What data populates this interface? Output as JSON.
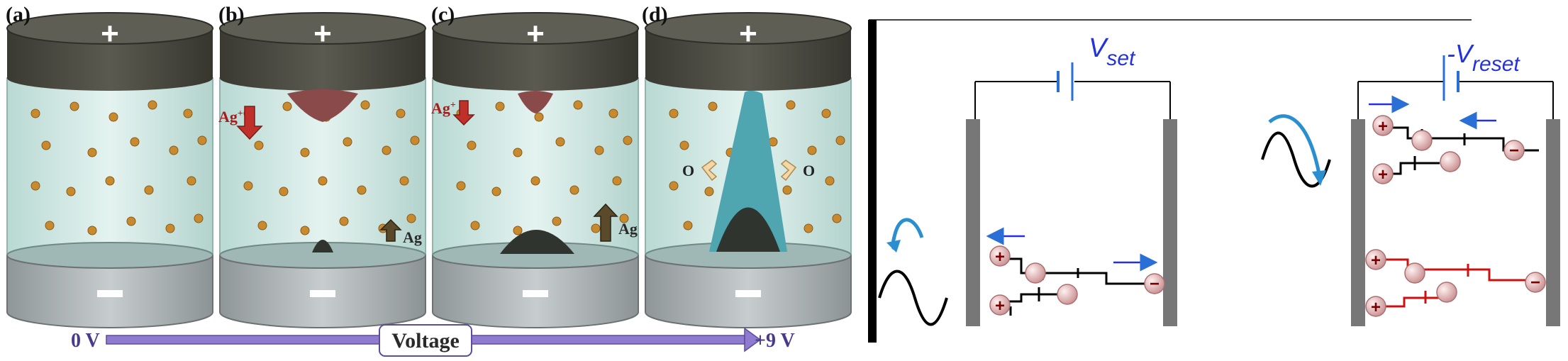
{
  "panels": [
    {
      "label": "(a)",
      "stage": "initial"
    },
    {
      "label": "(b)",
      "stage": "nucleation",
      "ion_label": "Ag",
      "ion_sup": "+",
      "ag_label": "Ag"
    },
    {
      "label": "(c)",
      "stage": "growth",
      "ion_label": "Ag",
      "ion_sup": "+",
      "ag_label": "Ag"
    },
    {
      "label": "(d)",
      "stage": "filament",
      "o_label_left": "O",
      "o_label_right": "O"
    }
  ],
  "electrodes": {
    "top": "+",
    "bottom": "−"
  },
  "voltage_axis": {
    "start": "0 V",
    "label": "Voltage",
    "end": "+9 V"
  },
  "circuits": [
    {
      "label_main": "V",
      "label_sub": "set",
      "prefix": ""
    },
    {
      "label_main": "V",
      "label_sub": "reset",
      "prefix": "-"
    }
  ],
  "charges": {
    "plus": "+",
    "minus": "−"
  },
  "colors": {
    "cap": "#4a4a42",
    "glass": "#cfe7e2",
    "particle": "#c88a2e",
    "cluster_brown": "#8a4a4a",
    "cluster_dark": "#2f352e",
    "filament": "#4fa6b0",
    "arrow_red": "#c0302a",
    "arrow_dark": "#5a4a2a",
    "voltage_bar": "#8f7ccf",
    "circuit_blue": "#2a6fd6",
    "electrode_gray": "#777777"
  }
}
